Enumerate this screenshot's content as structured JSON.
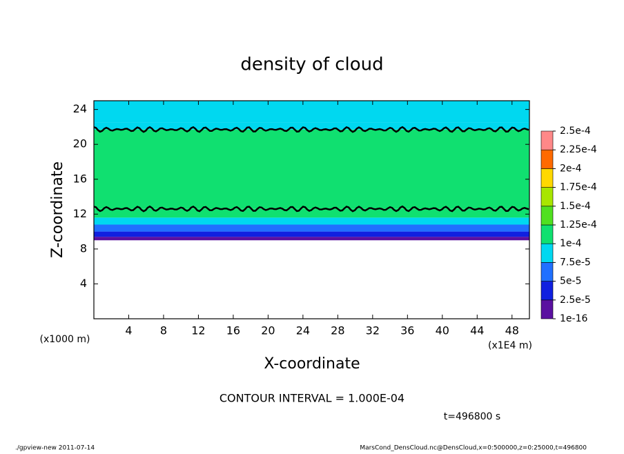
{
  "chart_data": {
    "type": "heatmap",
    "title": "density of cloud",
    "x_label": "X-coordinate",
    "y_label": "Z-coordinate",
    "x_unit_left": "(x1000 m)",
    "x_unit_right": "(x1E4 m)",
    "contour_note": "CONTOUR INTERVAL = 1.000E-04",
    "time_note": "t=496800 s",
    "footer_left": "./gpview-new  2011-07-14",
    "footer_right": "MarsCond_DensCloud.nc@DensCloud,x=0:500000,z=0:25000,t=496800",
    "xlim": [
      0,
      50
    ],
    "xticks": [
      4,
      8,
      12,
      16,
      20,
      24,
      28,
      32,
      36,
      40,
      44,
      48
    ],
    "ylim": [
      0,
      25
    ],
    "yticks": [
      4,
      8,
      12,
      16,
      20,
      24
    ],
    "profile": {
      "z_edges": [
        9,
        9.4,
        10,
        10.8,
        11.6,
        12.6,
        21.7,
        22.5,
        25
      ],
      "values": [
        1.5e-05,
        3e-05,
        6e-05,
        9e-05,
        0.00011,
        0.00011,
        9e-05,
        8e-05
      ]
    },
    "contour_z": [
      12.6,
      21.7
    ],
    "colorbar": {
      "levels": [
        {
          "value": 1e-16,
          "label": "1e-16"
        },
        {
          "value": 2.5e-05,
          "label": "2.5e-5"
        },
        {
          "value": 5e-05,
          "label": "5e-5"
        },
        {
          "value": 7.5e-05,
          "label": "7.5e-5"
        },
        {
          "value": 0.0001,
          "label": "1e-4"
        },
        {
          "value": 0.000125,
          "label": "1.25e-4"
        },
        {
          "value": 0.00015,
          "label": "1.5e-4"
        },
        {
          "value": 0.000175,
          "label": "1.75e-4"
        },
        {
          "value": 0.0002,
          "label": "2e-4"
        },
        {
          "value": 0.000225,
          "label": "2.25e-4"
        },
        {
          "value": 0.00025,
          "label": "2.5e-4"
        }
      ],
      "colors": [
        "#5a10a0",
        "#1020e0",
        "#2070ff",
        "#00d8f0",
        "#10e070",
        "#50e020",
        "#a8e600",
        "#ffd800",
        "#ff6a00",
        "#ff8888"
      ]
    }
  }
}
